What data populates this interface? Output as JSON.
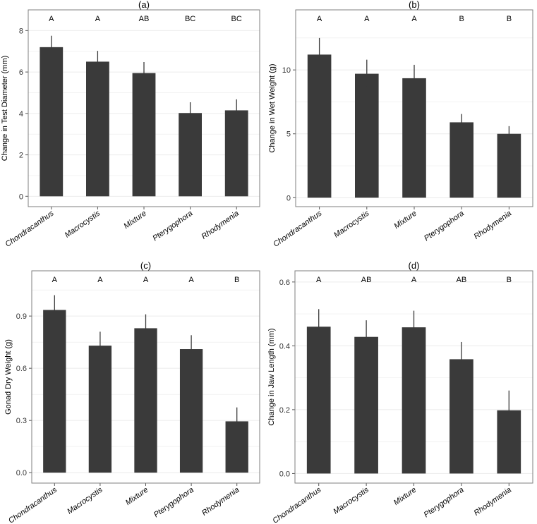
{
  "colors": {
    "bar": "#3a3a3a",
    "error_bar": "#3a3a3a",
    "panel_border": "#7f7f7f",
    "grid": "#ebebeb",
    "background": "#ffffff"
  },
  "chart_data": [
    {
      "type": "bar",
      "title": "(a)",
      "xlabel": "",
      "ylabel": "Change in Test Diameter (mm)",
      "categories": [
        "Chondracanthus",
        "Macrocystis",
        "Mixture",
        "Pterygophora",
        "Rhodymenia"
      ],
      "values": [
        7.2,
        6.5,
        5.95,
        4.02,
        4.15
      ],
      "error_low": [
        6.65,
        5.98,
        5.42,
        3.5,
        3.62
      ],
      "error_high": [
        7.75,
        7.02,
        6.48,
        4.54,
        4.68
      ],
      "significance": [
        "A",
        "A",
        "AB",
        "BC",
        "BC"
      ],
      "ylim": [
        -0.5,
        9.0
      ],
      "yticks": [
        0,
        2,
        4,
        6,
        8
      ],
      "ytick_labels": [
        "0",
        "2",
        "4",
        "6",
        "8"
      ],
      "grid": true,
      "legend": "none"
    },
    {
      "type": "bar",
      "title": "(b)",
      "xlabel": "",
      "ylabel": "Change in Wet Weight (g)",
      "categories": [
        "Chondracanthus",
        "Macrocystis",
        "Mixture",
        "Pterygophora",
        "Rhodymenia"
      ],
      "values": [
        11.2,
        9.7,
        9.35,
        5.9,
        5.0
      ],
      "error_low": [
        10.1,
        8.7,
        8.35,
        5.3,
        4.5
      ],
      "error_high": [
        12.5,
        10.8,
        10.4,
        6.55,
        5.6
      ],
      "significance": [
        "A",
        "A",
        "A",
        "B",
        "B"
      ],
      "ylim": [
        -0.7,
        14.7
      ],
      "yticks": [
        0,
        5,
        10
      ],
      "ytick_labels": [
        "0",
        "5",
        "10"
      ],
      "grid": true,
      "legend": "none"
    },
    {
      "type": "bar",
      "title": "(c)",
      "xlabel": "",
      "ylabel": "Gonad Dry Weight (g)",
      "categories": [
        "Chondracanthus",
        "Macrocystis",
        "Mixture",
        "Pterygophora",
        "Rhodymenia"
      ],
      "values": [
        0.935,
        0.73,
        0.83,
        0.71,
        0.295
      ],
      "error_low": [
        0.855,
        0.65,
        0.745,
        0.63,
        0.215
      ],
      "error_high": [
        1.02,
        0.81,
        0.91,
        0.79,
        0.375
      ],
      "significance": [
        "A",
        "A",
        "A",
        "A",
        "B"
      ],
      "ylim": [
        -0.06,
        1.16
      ],
      "yticks": [
        0,
        0.3,
        0.6,
        0.9
      ],
      "ytick_labels": [
        "0.0",
        "0.3",
        "0.6",
        "0.9"
      ],
      "grid": true,
      "legend": "none"
    },
    {
      "type": "bar",
      "title": "(d)",
      "xlabel": "",
      "ylabel": "Change in Jaw Length (mm)",
      "categories": [
        "Chondracanthus",
        "Macrocystis",
        "Mixture",
        "Pterygophora",
        "Rhodymenia"
      ],
      "values": [
        0.46,
        0.428,
        0.458,
        0.358,
        0.198
      ],
      "error_low": [
        0.403,
        0.372,
        0.405,
        0.302,
        0.135
      ],
      "error_high": [
        0.515,
        0.48,
        0.51,
        0.412,
        0.26
      ],
      "significance": [
        "A",
        "AB",
        "A",
        "AB",
        "B"
      ],
      "ylim": [
        -0.03,
        0.635
      ],
      "yticks": [
        0,
        0.2,
        0.4,
        0.6
      ],
      "ytick_labels": [
        "0.0",
        "0.2",
        "0.4",
        "0.6"
      ],
      "grid": true,
      "legend": "none"
    }
  ]
}
